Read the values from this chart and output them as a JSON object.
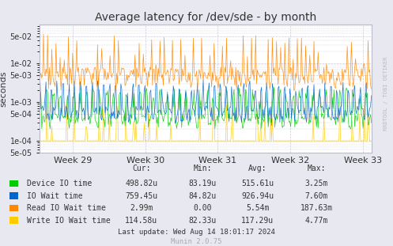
{
  "title": "Average latency for /dev/sde - by month",
  "ylabel": "seconds",
  "bg_color": "#e8e8f0",
  "plot_bg_color": "#ffffff",
  "grid_color": "#ccccdd",
  "x_ticks": [
    "Week 29",
    "Week 30",
    "Week 31",
    "Week 32",
    "Week 33"
  ],
  "y_ticks": [
    5e-05,
    0.0001,
    0.0005,
    0.001,
    0.005,
    0.01,
    0.05
  ],
  "ylim": [
    5e-05,
    0.1
  ],
  "colors": {
    "device_io": "#00cc00",
    "io_wait": "#0066cc",
    "read_io_wait": "#ff8800",
    "write_io_wait": "#ffcc00"
  },
  "legend_colors": [
    "#00cc00",
    "#0066cc",
    "#ff8800",
    "#ffcc00"
  ],
  "table_headers": [
    "Cur:",
    "Min:",
    "Avg:",
    "Max:"
  ],
  "table_rows": [
    [
      "Device IO time",
      "498.82u",
      "83.19u",
      "515.61u",
      "3.25m"
    ],
    [
      "IO Wait time",
      "759.45u",
      "84.82u",
      "926.94u",
      "7.60m"
    ],
    [
      "Read IO Wait time",
      "2.99m",
      "0.00",
      "5.54m",
      "187.63m"
    ],
    [
      "Write IO Wait time",
      "114.58u",
      "82.33u",
      "117.29u",
      "4.77m"
    ]
  ],
  "last_update": "Last update: Wed Aug 14 18:01:17 2024",
  "munin_text": "Munin 2.0.75",
  "rrdtool_text": "RRDTOOL / TOBI OETIKER",
  "n_points": 400
}
